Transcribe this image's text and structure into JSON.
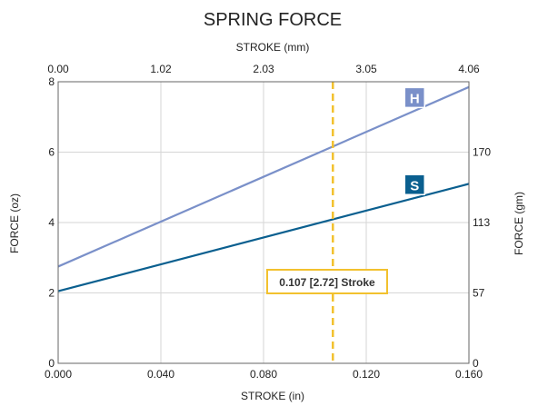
{
  "chart_data": {
    "type": "line",
    "title": "SPRING FORCE",
    "top_axis": {
      "label": "STROKE (mm)",
      "ticks": [
        "0.00",
        "1.02",
        "2.03",
        "3.05",
        "4.06"
      ]
    },
    "bottom_axis": {
      "label": "STROKE (in)",
      "ticks": [
        "0.000",
        "0.040",
        "0.080",
        "0.120",
        "0.160"
      ],
      "range": [
        0,
        0.16
      ]
    },
    "left_axis": {
      "label": "FORCE (oz)",
      "ticks": [
        "0",
        "2",
        "4",
        "6",
        "8"
      ],
      "range": [
        0,
        8
      ]
    },
    "right_axis": {
      "label": "FORCE (gm)",
      "ticks": [
        {
          "label": "0",
          "oz": 0
        },
        {
          "label": "57",
          "oz": 2
        },
        {
          "label": "113",
          "oz": 4
        },
        {
          "label": "170",
          "oz": 6
        }
      ]
    },
    "grid": true,
    "series": [
      {
        "name": "H",
        "color": "#7a90c9",
        "x": [
          0,
          0.16
        ],
        "y": [
          2.75,
          7.85
        ]
      },
      {
        "name": "S",
        "color": "#0a5f8f",
        "x": [
          0,
          0.16
        ],
        "y": [
          2.05,
          5.1
        ]
      }
    ],
    "annotation": {
      "x": 0.107,
      "text": "0.107 [2.72] Stroke",
      "color": "#f2c12e"
    }
  }
}
